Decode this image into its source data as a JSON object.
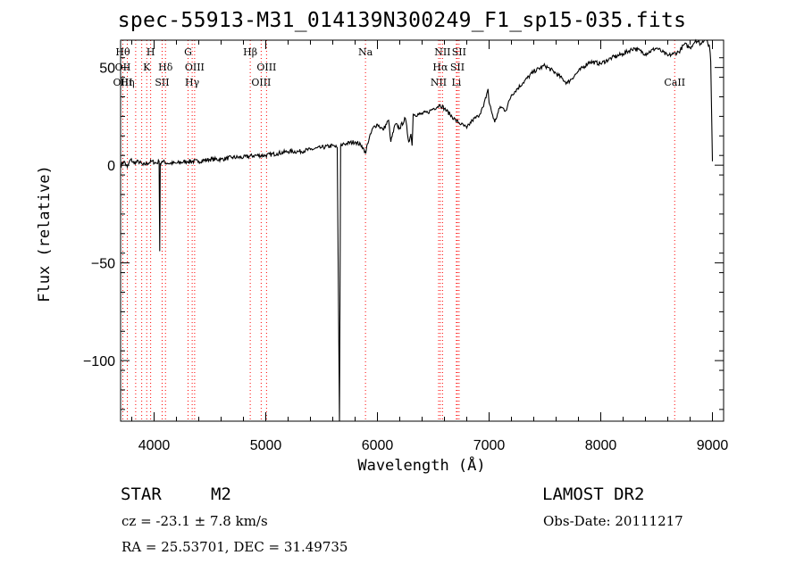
{
  "header": {
    "title": "spec-55913-M31_014139N300249_F1_sp15-035.fits"
  },
  "footer": {
    "object_class": "STAR",
    "subclass": "M2",
    "survey": "LAMOST DR2",
    "cz": "cz = -23.1 ± 7.8 km/s",
    "obs_date": "Obs-Date: 20111217",
    "coords": "RA =  25.53701, DEC =  31.49735"
  },
  "chart_data": {
    "type": "line",
    "xlabel": "Wavelength (Å)",
    "ylabel": "Flux (relative)",
    "xlim": [
      3700,
      9100
    ],
    "ylim": [
      -131,
      64
    ],
    "xticks": [
      4000,
      5000,
      6000,
      7000,
      8000,
      9000
    ],
    "yticks": [
      -100,
      -50,
      0,
      50
    ],
    "ytick_labels": [
      "−100",
      "−50",
      "0",
      "50"
    ],
    "grid": false,
    "line_color": "#000000",
    "marker_color": "#ff0000",
    "series": [
      {
        "x": [
          3700,
          3730,
          3760,
          3790,
          3820,
          3860,
          3900,
          3940,
          3980,
          4020,
          4045,
          4050,
          4055,
          4070,
          4120,
          4200,
          4300,
          4400,
          4500,
          4600,
          4700,
          4800,
          4900,
          5000,
          5100,
          5200,
          5300,
          5400,
          5500,
          5600,
          5640,
          5660,
          5670,
          5680,
          5690,
          5720,
          5800,
          5860,
          5880,
          5895,
          5910,
          5960,
          6000,
          6050,
          6100,
          6120,
          6160,
          6200,
          6250,
          6280,
          6300,
          6310,
          6320,
          6380,
          6450,
          6500,
          6540,
          6560,
          6600,
          6650,
          6700,
          6750,
          6800,
          6850,
          6900,
          6950,
          6990,
          7000,
          7050,
          7100,
          7150,
          7200,
          7300,
          7400,
          7500,
          7600,
          7700,
          7800,
          7900,
          8000,
          8100,
          8200,
          8300,
          8400,
          8500,
          8550,
          8600,
          8650,
          8700,
          8750,
          8800,
          8850,
          8900,
          8940,
          8960,
          8975,
          8985,
          9000
        ],
        "y": [
          0,
          2,
          -1,
          3,
          1,
          2,
          0,
          1,
          2,
          1,
          2,
          -44,
          1,
          2,
          1,
          1,
          2,
          2,
          3,
          3,
          4,
          4,
          5,
          5,
          6,
          7,
          7,
          8,
          9,
          10,
          9,
          -136,
          10,
          10,
          11,
          11,
          12,
          10,
          8,
          6,
          11,
          19,
          21,
          18,
          23,
          12,
          21,
          19,
          24,
          12,
          16,
          10,
          26,
          26,
          27,
          29,
          30,
          31,
          29,
          26,
          23,
          21,
          19,
          23,
          25,
          30,
          39,
          32,
          22,
          30,
          28,
          36,
          42,
          48,
          51,
          47,
          42,
          48,
          53,
          52,
          55,
          57,
          60,
          57,
          60,
          58,
          56,
          57,
          58,
          62,
          60,
          64,
          62,
          66,
          62,
          60,
          53,
          2
        ]
      }
    ],
    "markers": [
      {
        "x": 3720,
        "lines": [
          "Hθ",
          "OII",
          "OIII"
        ]
      },
      {
        "x": 3760,
        "lines": [
          "",
          "",
          "Hη"
        ]
      },
      {
        "x": 3835,
        "lines": [
          "",
          "",
          ""
        ]
      },
      {
        "x": 3889,
        "lines": [
          "",
          "",
          ""
        ]
      },
      {
        "x": 3934,
        "lines": [
          "",
          "K",
          ""
        ]
      },
      {
        "x": 3969,
        "lines": [
          "H",
          "",
          ""
        ]
      },
      {
        "x": 4072,
        "lines": [
          "",
          "",
          "SII"
        ]
      },
      {
        "x": 4102,
        "lines": [
          "",
          "Hδ",
          ""
        ]
      },
      {
        "x": 4304,
        "lines": [
          "G",
          "",
          ""
        ]
      },
      {
        "x": 4341,
        "lines": [
          "",
          "",
          "Hγ"
        ]
      },
      {
        "x": 4363,
        "lines": [
          "",
          "OIII",
          ""
        ]
      },
      {
        "x": 4861,
        "lines": [
          "Hβ",
          "",
          ""
        ]
      },
      {
        "x": 4959,
        "lines": [
          "",
          "",
          "OIII"
        ]
      },
      {
        "x": 5007,
        "lines": [
          "",
          "OIII",
          ""
        ]
      },
      {
        "x": 5893,
        "lines": [
          "Na",
          "",
          ""
        ]
      },
      {
        "x": 6548,
        "lines": [
          "",
          "",
          "NII"
        ]
      },
      {
        "x": 6563,
        "lines": [
          "",
          "Hα",
          ""
        ]
      },
      {
        "x": 6583,
        "lines": [
          "NII",
          "",
          ""
        ]
      },
      {
        "x": 6707,
        "lines": [
          "",
          "",
          "Li"
        ]
      },
      {
        "x": 6716,
        "lines": [
          "",
          "SII",
          ""
        ]
      },
      {
        "x": 6731,
        "lines": [
          "SII",
          "",
          ""
        ]
      },
      {
        "x": 8662,
        "lines": [
          "",
          "",
          "CaII"
        ]
      }
    ]
  }
}
